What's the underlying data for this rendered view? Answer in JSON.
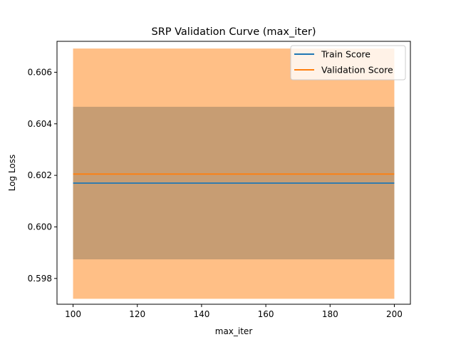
{
  "chart_data": {
    "type": "line",
    "title": "SRP Validation Curve (max_iter)",
    "xlabel": "max_iter",
    "ylabel": "Log Loss",
    "x": [
      100,
      200
    ],
    "xlim": [
      95,
      205
    ],
    "ylim": [
      0.597,
      0.6072
    ],
    "xticks": [
      100,
      120,
      140,
      160,
      180,
      200
    ],
    "yticks": [
      0.598,
      0.6,
      0.602,
      0.604,
      0.606
    ],
    "xtick_labels": [
      "100",
      "120",
      "140",
      "160",
      "180",
      "200"
    ],
    "ytick_labels": [
      "0.598",
      "0.600",
      "0.602",
      "0.604",
      "0.606"
    ],
    "grid": false,
    "legend_position": "top-right",
    "series": [
      {
        "name": "Train Score",
        "color": "#1f77b4",
        "values": [
          0.6017,
          0.6017
        ],
        "band_lower": [
          0.59874,
          0.59874
        ],
        "band_upper": [
          0.60466,
          0.60466
        ]
      },
      {
        "name": "Validation Score",
        "color": "#ff7f0e",
        "values": [
          0.60205,
          0.60205
        ],
        "band_lower": [
          0.59721,
          0.59721
        ],
        "band_upper": [
          0.60692,
          0.60692
        ]
      }
    ]
  }
}
